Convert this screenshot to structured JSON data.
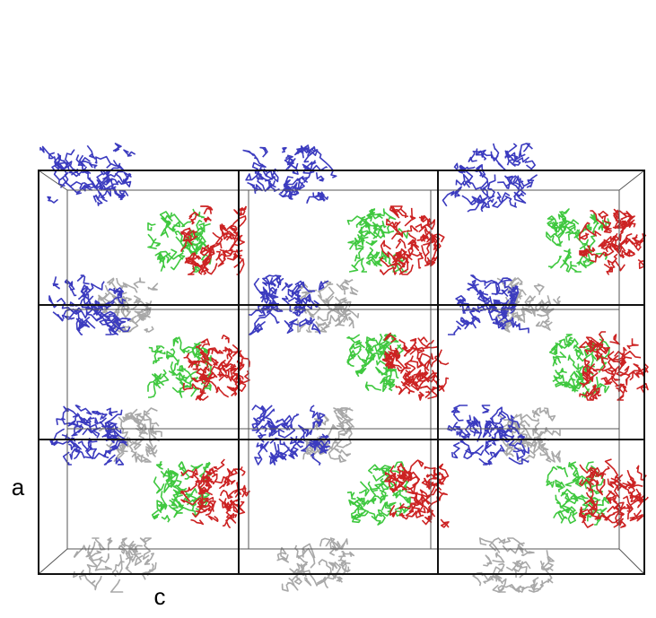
{
  "axes": {
    "a": "a",
    "c": "c"
  }
}
